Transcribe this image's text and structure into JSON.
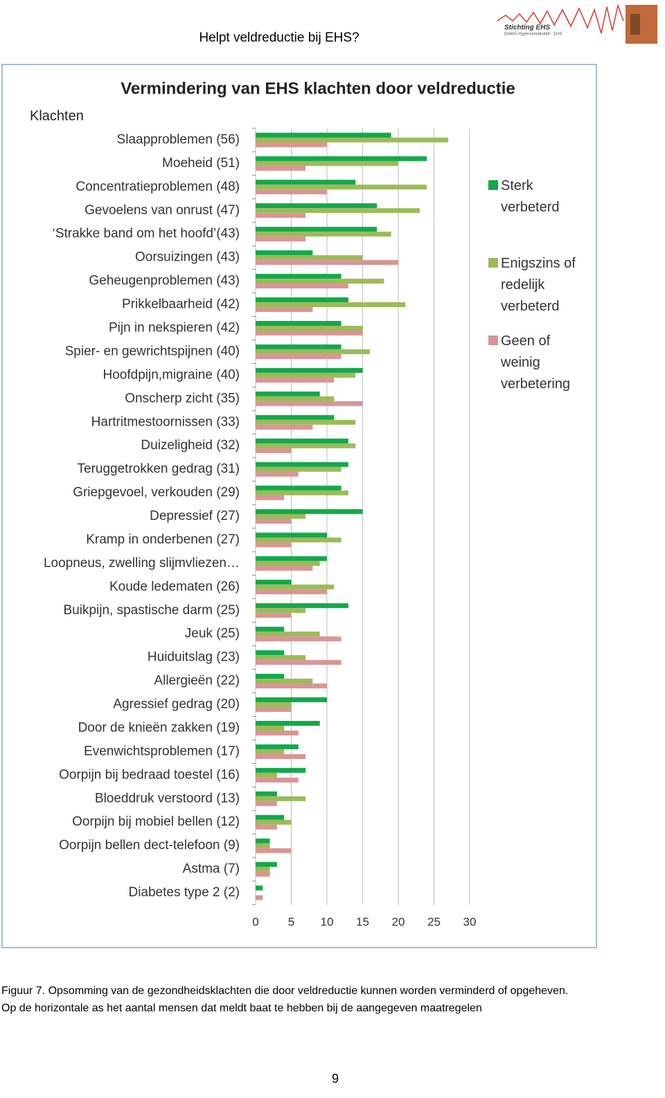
{
  "header": {
    "title": "Helpt veldreductie bij EHS?",
    "logo_name": "Stichting EHS",
    "logo_subtitle": "Elektro Hypersensitiviteit - EHS"
  },
  "chart_data": {
    "type": "bar",
    "orientation": "horizontal",
    "title": "Vermindering van EHS klachten door veldreductie",
    "y_label": "Klachten",
    "categories": [
      "Slaapproblemen (56)",
      "Moeheid (51)",
      "Concentratieproblemen (48)",
      "Gevoelens van onrust (47)",
      "‘Strakke band om het hoofd’(43)",
      "Oorsuizingen (43)",
      "Geheugenproblemen (43)",
      "Prikkelbaarheid (42)",
      "Pijn in nekspieren (42)",
      "Spier- en gewrichtspijnen (40)",
      "Hoofdpijn,migraine (40)",
      "Onscherp zicht (35)",
      "Hartritmestoornissen (33)",
      "Duizeligheid (32)",
      "Teruggetrokken gedrag (31)",
      "Griepgevoel, verkouden (29)",
      "Depressief (27)",
      "Kramp in onderbenen (27)",
      "Loopneus, zwelling slijmvliezen…",
      "Koude ledematen (26)",
      "Buikpijn, spastische darm (25)",
      "Jeuk (25)",
      "Huiduitslag (23)",
      "Allergieën (22)",
      "Agressief gedrag (20)",
      "Door de knieën zakken (19)",
      "Evenwichtsproblemen (17)",
      "Oorpijn bij bedraad toestel (16)",
      "Bloeddruk verstoord (13)",
      "Oorpijn bij mobiel bellen (12)",
      "Oorpijn bellen dect-telefoon (9)",
      "Astma (7)",
      "Diabetes type 2 (2)"
    ],
    "series": [
      {
        "name": "Sterk verbeterd",
        "color": "#14a84b",
        "values": [
          19,
          24,
          14,
          17,
          17,
          8,
          12,
          13,
          12,
          12,
          15,
          9,
          11,
          13,
          13,
          12,
          15,
          10,
          10,
          5,
          13,
          4,
          4,
          4,
          10,
          9,
          6,
          7,
          3,
          4,
          2,
          3,
          1
        ]
      },
      {
        "name": "Enigszins of redelijk verbeterd",
        "color": "#9bbb59",
        "values": [
          27,
          20,
          24,
          23,
          19,
          15,
          18,
          21,
          15,
          16,
          14,
          11,
          14,
          14,
          12,
          13,
          7,
          12,
          9,
          11,
          7,
          9,
          7,
          8,
          5,
          4,
          4,
          3,
          7,
          5,
          2,
          2,
          0
        ]
      },
      {
        "name": "Geen of weinig verbetering",
        "color": "#d99594",
        "values": [
          10,
          7,
          10,
          7,
          7,
          20,
          13,
          8,
          15,
          12,
          11,
          15,
          8,
          5,
          6,
          4,
          5,
          5,
          8,
          10,
          5,
          12,
          12,
          10,
          5,
          6,
          7,
          6,
          3,
          3,
          5,
          2,
          1
        ]
      }
    ],
    "xlim": [
      0,
      30
    ],
    "xticks": [
      0,
      5,
      10,
      15,
      20,
      25,
      30
    ],
    "grid": true,
    "legend": "right"
  },
  "caption": [
    "Figuur 7. Opsomming van de gezondheidsklachten die door veldreductie kunnen worden verminderd of opgeheven.",
    "Op de horizontale as het aantal mensen dat meldt baat te hebben bij de aangegeven maatregelen"
  ],
  "page_number": 9
}
